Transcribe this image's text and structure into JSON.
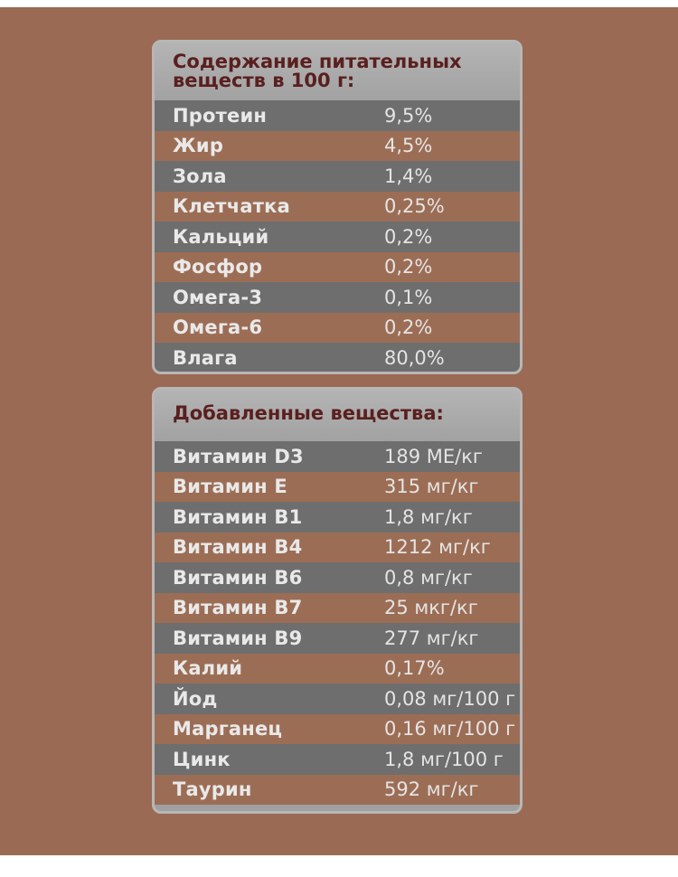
{
  "nutrients": {
    "title_line1": "Содержание питательных",
    "title_line2": "веществ в 100 г:",
    "rows": [
      {
        "name": "Протеин",
        "value": "9,5%"
      },
      {
        "name": "Жир",
        "value": "4,5%"
      },
      {
        "name": "Зола",
        "value": "1,4%"
      },
      {
        "name": "Клетчатка",
        "value": "0,25%"
      },
      {
        "name": "Кальций",
        "value": "0,2%"
      },
      {
        "name": "Фосфор",
        "value": "0,2%"
      },
      {
        "name": "Омега-3",
        "value": "0,1%"
      },
      {
        "name": "Омега-6",
        "value": "0,2%"
      },
      {
        "name": "Влага",
        "value": "80,0%"
      }
    ]
  },
  "additives": {
    "title": "Добавленные вещества:",
    "rows": [
      {
        "name": "Витамин D3",
        "value": "189 МЕ/кг"
      },
      {
        "name": "Витамин Е",
        "value": "315 мг/кг"
      },
      {
        "name": "Витамин В1",
        "value": "1,8 мг/кг"
      },
      {
        "name": "Витамин В4",
        "value": "1212 мг/кг"
      },
      {
        "name": "Витамин В6",
        "value": "0,8 мг/кг"
      },
      {
        "name": "Витамин В7",
        "value": "25 мкг/кг"
      },
      {
        "name": "Витамин В9",
        "value": "277 мг/кг"
      },
      {
        "name": "Калий",
        "value": "0,17%"
      },
      {
        "name": "Йод",
        "value": "0,08 мг/100 г"
      },
      {
        "name": "Марганец",
        "value": "0,16 мг/100 г"
      },
      {
        "name": "Цинк",
        "value": "1,8 мг/100 г"
      },
      {
        "name": "Таурин",
        "value": "592 мг/кг"
      }
    ]
  }
}
